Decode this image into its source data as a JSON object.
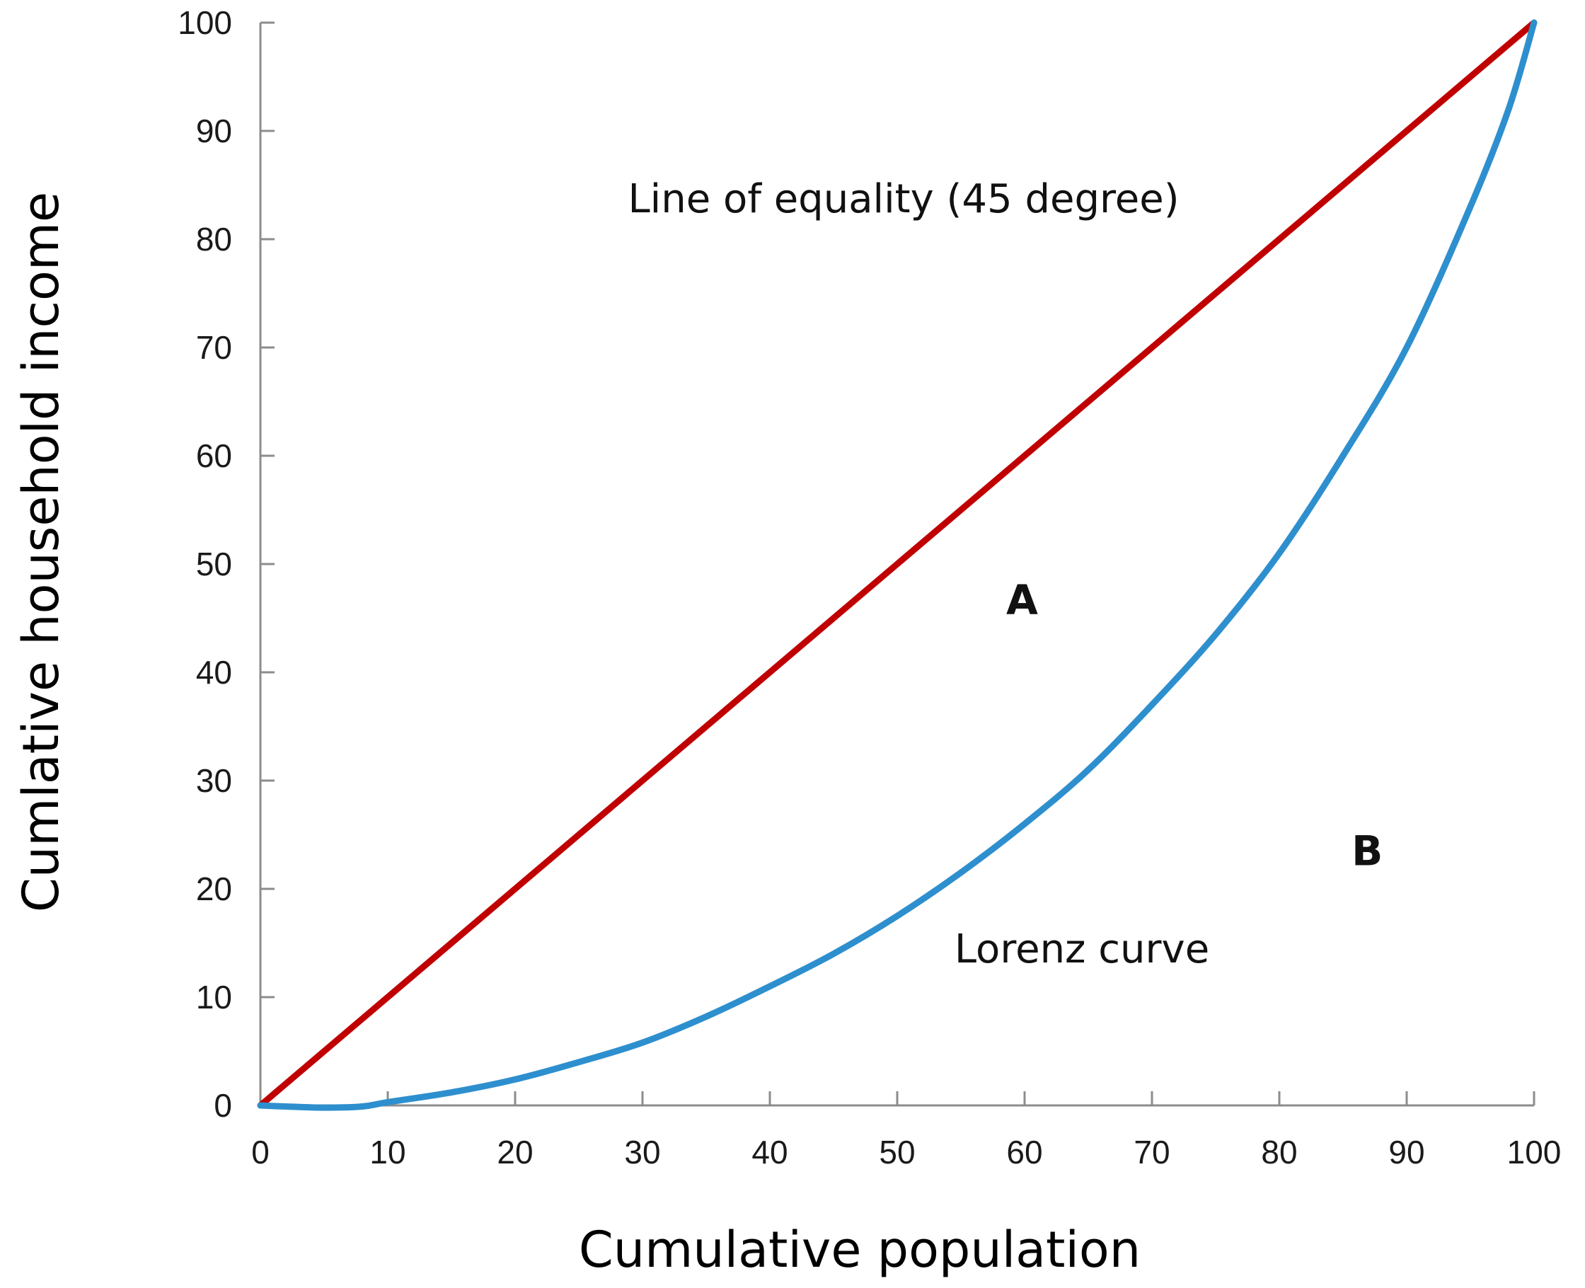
{
  "chart_data": {
    "type": "line",
    "xlabel": "Cumulative population",
    "ylabel": "Cumlative household income",
    "xlim": [
      0,
      100
    ],
    "ylim": [
      0,
      100
    ],
    "x_ticks": [
      0,
      10,
      20,
      30,
      40,
      50,
      60,
      70,
      80,
      90,
      100
    ],
    "y_ticks": [
      0,
      10,
      20,
      30,
      40,
      50,
      60,
      70,
      80,
      90,
      100
    ],
    "grid": false,
    "legend": "none",
    "series": [
      {
        "key": "equality",
        "color": "#c00000",
        "x": [
          0,
          100
        ],
        "y": [
          0,
          100
        ]
      },
      {
        "key": "lorenz",
        "color": "#2e8fce",
        "x": [
          0,
          2,
          5,
          8,
          10,
          15,
          20,
          25,
          30,
          35,
          40,
          45,
          50,
          55,
          60,
          65,
          70,
          75,
          80,
          85,
          90,
          95,
          98,
          100
        ],
        "y": [
          0,
          -0.1,
          -0.2,
          -0.1,
          0.3,
          1.2,
          2.4,
          4.0,
          5.8,
          8.2,
          11.0,
          14.0,
          17.5,
          21.5,
          26.0,
          31.0,
          37.0,
          43.5,
          51.0,
          60.0,
          70.0,
          83.0,
          92.0,
          100
        ]
      }
    ],
    "annotations": [
      {
        "key": "equality_label",
        "text": "Line of equality (45 degree)",
        "x": 50.5,
        "y": 82.5,
        "anchor": "middle",
        "style": "normal"
      },
      {
        "key": "lorenz_label",
        "text": "Lorenz curve",
        "x": 64.5,
        "y": 13.2,
        "anchor": "middle",
        "style": "normal"
      },
      {
        "key": "area_a",
        "text": "A",
        "x": 59.8,
        "y": 45.4,
        "anchor": "middle",
        "style": "bold"
      },
      {
        "key": "area_b",
        "text": "B",
        "x": 86.9,
        "y": 22.2,
        "anchor": "middle",
        "style": "bold"
      }
    ]
  },
  "colors": {
    "axis": "#8c8c8c",
    "equality_line": "#c00000",
    "lorenz_curve": "#2e8fce"
  }
}
